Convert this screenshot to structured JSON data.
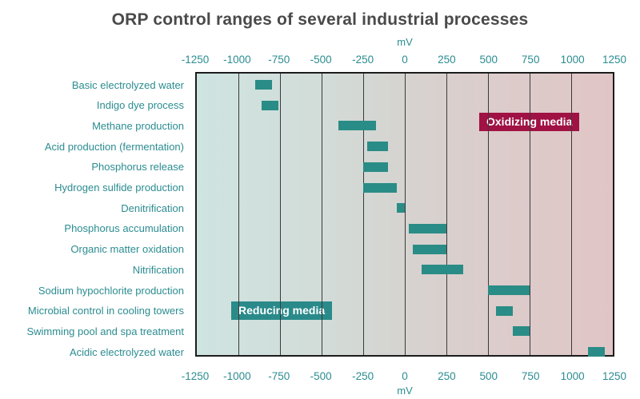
{
  "page": {
    "title": "ORP control ranges of several industrial processes"
  },
  "chart_data": {
    "type": "bar",
    "subtype": "horizontal-range-bars",
    "title": "ORP control ranges of several industrial processes",
    "xlabel": "mV",
    "unit": "mV",
    "xlim": [
      -1250,
      1250
    ],
    "ticks": [
      -1250,
      -1000,
      -750,
      -500,
      -250,
      0,
      250,
      500,
      750,
      1000,
      1250
    ],
    "tick_labels": [
      "-1250",
      "-1000",
      "-750",
      "-500",
      "-250",
      "0",
      "250",
      "500",
      "750",
      "1000",
      "1250"
    ],
    "grid": true,
    "legend_position": "none",
    "categories": [
      "Basic electrolyzed water",
      "Indigo dye process",
      "Methane production",
      "Acid production (fermentation)",
      "Phosphorus release",
      "Hydrogen sulfide production",
      "Denitrification",
      "Phosphorus accumulation",
      "Organic matter oxidation",
      "Nitrification",
      "Sodium hypochlorite production",
      "Microbial control in cooling towers",
      "Swimming pool and spa treatment",
      "Acidic electrolyzed water"
    ],
    "ranges_mV": [
      [
        -900,
        -800
      ],
      [
        -860,
        -760
      ],
      [
        -400,
        -175
      ],
      [
        -225,
        -100
      ],
      [
        -250,
        -100
      ],
      [
        -250,
        -50
      ],
      [
        -50,
        0
      ],
      [
        25,
        250
      ],
      [
        50,
        250
      ],
      [
        100,
        350
      ],
      [
        500,
        750
      ],
      [
        550,
        650
      ],
      [
        650,
        750
      ],
      [
        1100,
        1200
      ]
    ],
    "annotations": [
      {
        "text": "Oxidizing media",
        "placement": "top-right",
        "bg_color": "#a01144",
        "text_color": "#ffffff"
      },
      {
        "text": "Reducing media",
        "placement": "bottom-left",
        "bg_color": "#2a8a8a",
        "text_color": "#ffffff"
      }
    ],
    "colors": {
      "bar": "#2a8c86",
      "axis_text": "#2b8c91",
      "title_text": "#4a4a4a",
      "gridline": "#3a3a3a",
      "bg_gradient_left": "#cee4e1",
      "bg_gradient_right": "#e1c5c6"
    }
  }
}
